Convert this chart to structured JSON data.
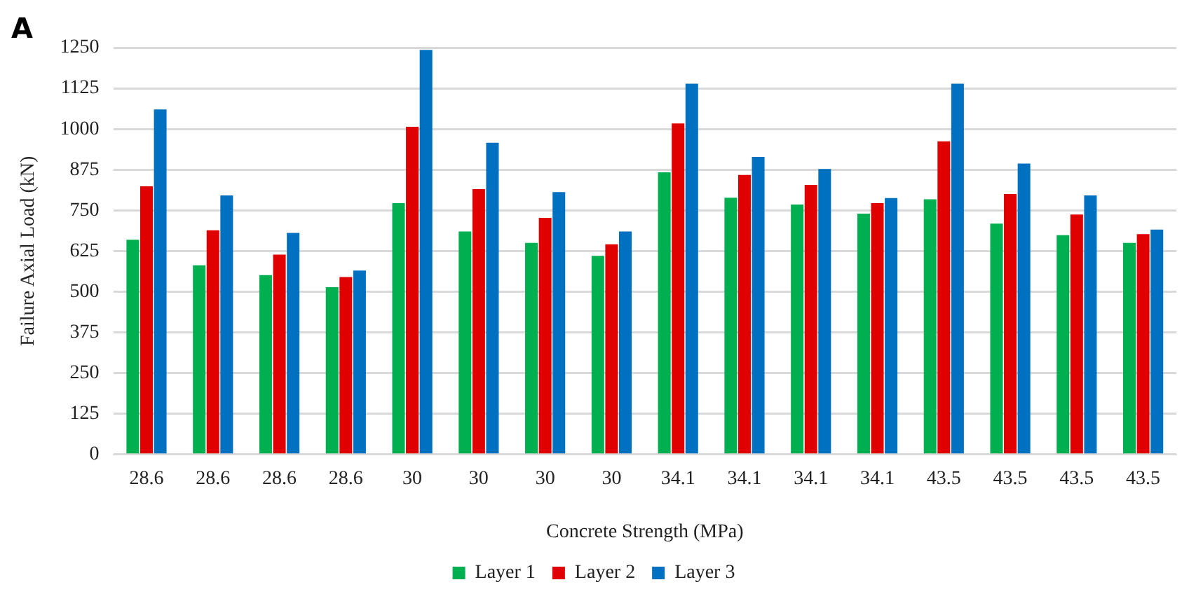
{
  "chart_data": {
    "type": "bar",
    "title": "A",
    "xlabel": "Concrete Strength (MPa)",
    "ylabel": "Failure Axial Load (kN)",
    "categories": [
      "28.6",
      "28.6",
      "28.6",
      "28.6",
      "30",
      "30",
      "30",
      "30",
      "34.1",
      "34.1",
      "34.1",
      "34.1",
      "43.5",
      "43.5",
      "43.5",
      "43.5"
    ],
    "series": [
      {
        "name": "Layer 1",
        "color": "#00b050",
        "values": [
          660,
          581,
          551,
          514,
          772,
          685,
          650,
          610,
          867,
          789,
          768,
          740,
          784,
          709,
          674,
          650
        ]
      },
      {
        "name": "Layer 2",
        "color": "#e00000",
        "values": [
          824,
          689,
          614,
          545,
          1007,
          815,
          727,
          646,
          1017,
          859,
          828,
          772,
          962,
          800,
          737,
          677
        ]
      },
      {
        "name": "Layer 3",
        "color": "#0070c0",
        "values": [
          1060,
          796,
          681,
          565,
          1243,
          958,
          806,
          685,
          1139,
          914,
          877,
          788,
          1139,
          894,
          796,
          691
        ]
      }
    ],
    "ylim": [
      0,
      1250
    ],
    "yticks": [
      0,
      125,
      250,
      375,
      500,
      625,
      750,
      875,
      1000,
      1125,
      1250
    ],
    "grid": "y",
    "legend": "bottom"
  }
}
